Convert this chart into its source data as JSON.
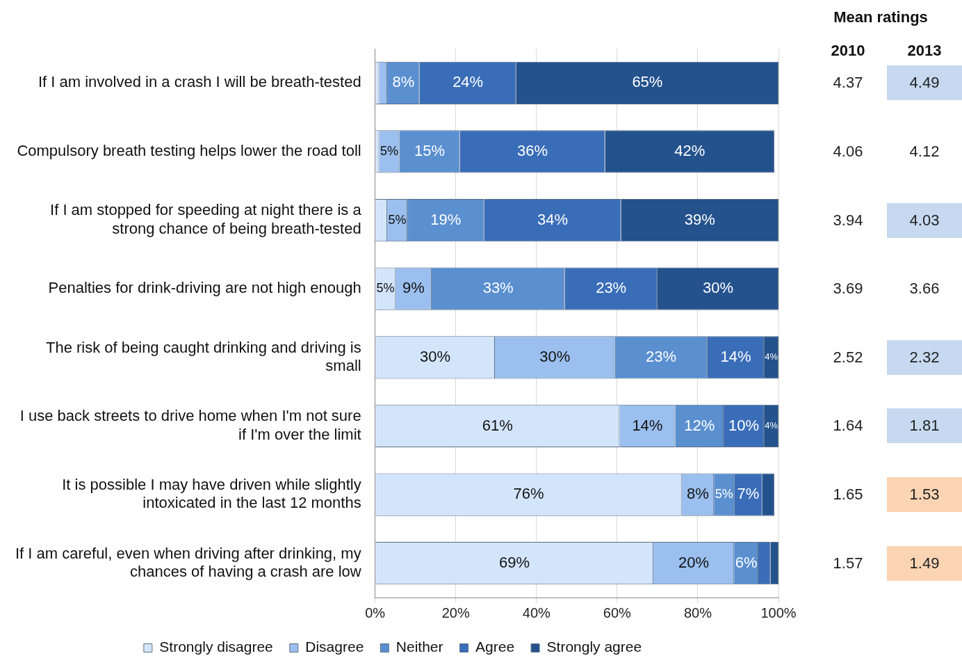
{
  "chart_data": [
    {
      "type": "bar",
      "orientation": "horizontal",
      "stacked": true,
      "categories": [
        "If I am involved in a crash I will be breath-tested",
        "Compulsory breath testing helps lower the road toll",
        "If I am stopped for speeding at night there is a strong chance of being breath-tested",
        "Penalties for drink-driving are not high enough",
        "The risk of being caught drinking and driving is small",
        "I use back streets to drive home when I'm not sure if I'm over the limit",
        "It is possible I may have driven while slightly intoxicated in the last 12 months",
        "If I am careful, even when driving after drinking, my chances of having a crash are low"
      ],
      "series": [
        {
          "name": "Strongly disagree",
          "color": "#d3e5fb",
          "values": [
            1,
            1,
            3,
            5,
            29.7,
            60.6,
            76,
            69
          ],
          "value_labels": [
            null,
            null,
            null,
            "5%",
            "30%",
            "61%",
            "76%",
            "69%"
          ]
        },
        {
          "name": "Disagree",
          "color": "#9bbfee",
          "values": [
            2,
            5,
            5,
            9,
            29.7,
            13.8,
            8,
            20
          ],
          "value_labels": [
            null,
            "5%",
            "5%",
            "9%",
            "30%",
            "14%",
            "8%",
            "20%"
          ]
        },
        {
          "name": "Neither",
          "color": "#5a8fd0",
          "values": [
            8,
            15,
            19,
            33,
            23,
            12,
            5,
            6
          ],
          "value_labels": [
            "8%",
            "15%",
            "19%",
            "33%",
            "23%",
            "12%",
            "5%",
            "6%"
          ]
        },
        {
          "name": "Agree",
          "color": "#3a6db8",
          "values": [
            24,
            36,
            34,
            23,
            14,
            10,
            7,
            3
          ],
          "value_labels": [
            "24%",
            "36%",
            "34%",
            "23%",
            "14%",
            "10%",
            "7%",
            null
          ]
        },
        {
          "name": "Strongly agree",
          "color": "#24528d",
          "values": [
            65,
            42,
            39,
            30,
            3.6,
            3.6,
            3,
            2
          ],
          "value_labels": [
            "65%",
            "42%",
            "39%",
            "30%",
            "4%",
            "4%",
            null,
            null
          ]
        }
      ],
      "xlim": [
        0,
        100
      ],
      "xticks": [
        {
          "value": 0,
          "label": "0%"
        },
        {
          "value": 20,
          "label": "20%"
        },
        {
          "value": 40,
          "label": "40%"
        },
        {
          "value": 60,
          "label": "60%"
        },
        {
          "value": 80,
          "label": "80%"
        },
        {
          "value": 100,
          "label": "100%"
        }
      ],
      "grid": "x",
      "legend": "bottom"
    },
    {
      "type": "heatmap",
      "title": "Mean ratings",
      "categories": [
        "2010",
        "2013"
      ],
      "y_categories": [
        null,
        null,
        null,
        null,
        null,
        null,
        null,
        null
      ],
      "data_labels": true,
      "cells": [
        [
          4.37,
          4.49
        ],
        [
          4.06,
          4.12
        ],
        [
          3.94,
          4.03
        ],
        [
          3.69,
          3.66
        ],
        [
          2.52,
          2.32
        ],
        [
          1.64,
          1.81
        ],
        [
          1.65,
          1.53
        ],
        [
          1.57,
          1.49
        ]
      ],
      "colors": [
        [
          null,
          "#c6d9f0"
        ],
        [
          null,
          null
        ],
        [
          null,
          "#c6d9f0"
        ],
        [
          null,
          null
        ],
        [
          null,
          "#c6d9f0"
        ],
        [
          null,
          "#c6d9f0"
        ],
        [
          null,
          "#fbd4b4"
        ],
        [
          null,
          "#fbd4b4"
        ]
      ]
    }
  ]
}
